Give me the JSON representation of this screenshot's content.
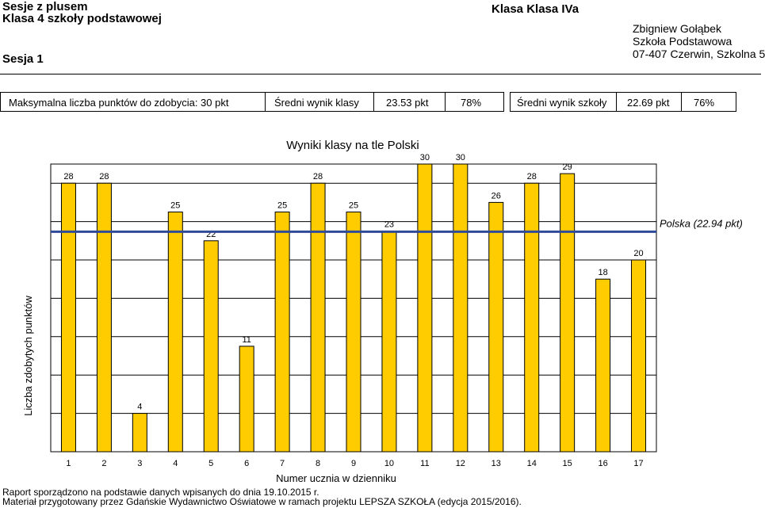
{
  "header": {
    "title_line1": "Sesje z plusem",
    "title_line2": "Klasa 4 szkoły podstawowej",
    "session": "Sesja 1",
    "class_name": "Klasa Klasa IVa",
    "teacher": "Zbigniew Gołąbek",
    "school": "Szkoła Podstawowa",
    "address": "07-407 Czerwin, Szkolna 5"
  },
  "stats": {
    "max_points_label": "Maksymalna liczba punktów do zdobycia: 30 pkt",
    "class_avg_label": "Średni wynik klasy",
    "class_avg_points": "23.53 pkt",
    "class_avg_percent": "78%",
    "school_avg_label": "Średni wynik szkoły",
    "school_avg_points": "22.69 pkt",
    "school_avg_percent": "76%"
  },
  "chart_data": {
    "type": "bar",
    "title": "Wyniki klasy na tle Polski",
    "xlabel": "Numer ucznia w dzienniku",
    "ylabel": "Liczba zdobytych punktów",
    "categories": [
      "1",
      "2",
      "3",
      "4",
      "5",
      "6",
      "7",
      "8",
      "9",
      "10",
      "11",
      "12",
      "13",
      "14",
      "15",
      "16",
      "17"
    ],
    "values": [
      28,
      28,
      4,
      25,
      22,
      11,
      25,
      28,
      25,
      23,
      30,
      30,
      26,
      28,
      29,
      18,
      20
    ],
    "ylim": [
      0,
      30
    ],
    "bar_color": "#ffcc00",
    "reference_line": {
      "label": "Polska (22.94 pkt)",
      "value": 22.94,
      "color": "#2e4a99"
    }
  },
  "footer": {
    "line1": "Raport sporządzono na podstawie danych wpisanych do dnia 19.10.2015 r.",
    "line2": "Materiał przygotowany przez Gdańskie Wydawnictwo Oświatowe w ramach projektu LEPSZA SZKOŁA (edycja 2015/2016)."
  }
}
